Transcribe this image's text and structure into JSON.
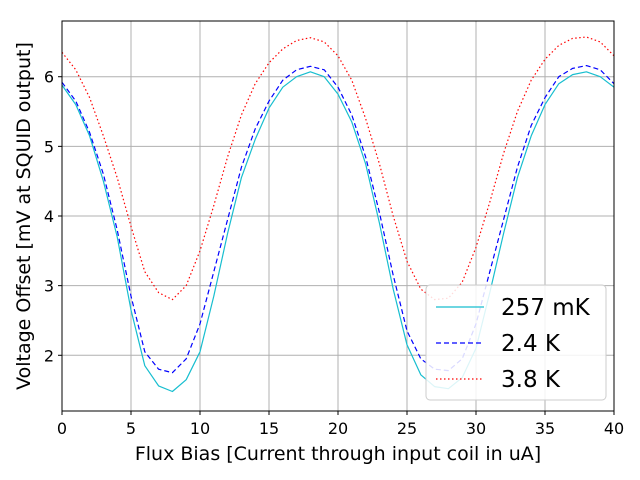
{
  "chart_data": {
    "type": "line",
    "xlabel": "Flux Bias [Current through input coil in uA]",
    "ylabel": "Voltage Offset [mV at SQUID output]",
    "xlim": [
      0,
      40
    ],
    "ylim": [
      1.2,
      6.8
    ],
    "x_ticks": [
      0,
      5,
      10,
      15,
      20,
      25,
      30,
      35,
      40
    ],
    "y_ticks": [
      2,
      3,
      4,
      5,
      6
    ],
    "grid": true,
    "legend_position": "lower-right",
    "x": [
      0,
      1,
      2,
      3,
      4,
      5,
      6,
      7,
      8,
      9,
      10,
      11,
      12,
      13,
      14,
      15,
      16,
      17,
      18,
      19,
      20,
      21,
      22,
      23,
      24,
      25,
      26,
      27,
      28,
      29,
      30,
      31,
      32,
      33,
      34,
      35,
      36,
      37,
      38,
      39,
      40
    ],
    "series": [
      {
        "name": "257 mK",
        "color": "#17becf",
        "style": "solid",
        "values": [
          5.88,
          5.6,
          5.15,
          4.5,
          3.7,
          2.65,
          1.85,
          1.56,
          1.48,
          1.65,
          2.05,
          2.85,
          3.75,
          4.55,
          5.1,
          5.55,
          5.85,
          6.0,
          6.07,
          6.0,
          5.75,
          5.35,
          4.75,
          3.9,
          2.95,
          2.15,
          1.72,
          1.55,
          1.52,
          1.68,
          2.1,
          2.9,
          3.75,
          4.55,
          5.15,
          5.6,
          5.9,
          6.03,
          6.07,
          6.0,
          5.85
        ]
      },
      {
        "name": "2.4 K",
        "color": "#0000ff",
        "style": "dashed",
        "values": [
          5.92,
          5.65,
          5.2,
          4.6,
          3.8,
          2.85,
          2.05,
          1.8,
          1.75,
          1.95,
          2.45,
          3.2,
          3.95,
          4.7,
          5.25,
          5.65,
          5.95,
          6.1,
          6.15,
          6.1,
          5.85,
          5.45,
          4.85,
          4.05,
          3.15,
          2.35,
          1.95,
          1.8,
          1.78,
          1.95,
          2.45,
          3.2,
          3.95,
          4.7,
          5.3,
          5.7,
          6.0,
          6.12,
          6.16,
          6.1,
          5.9
        ]
      },
      {
        "name": "3.8 K",
        "color": "#ff0000",
        "style": "dotted",
        "values": [
          6.35,
          6.1,
          5.7,
          5.15,
          4.55,
          3.85,
          3.2,
          2.9,
          2.8,
          3.0,
          3.5,
          4.15,
          4.85,
          5.45,
          5.9,
          6.2,
          6.4,
          6.52,
          6.56,
          6.5,
          6.3,
          5.95,
          5.4,
          4.75,
          4.0,
          3.35,
          2.95,
          2.8,
          2.82,
          3.05,
          3.55,
          4.2,
          4.9,
          5.5,
          5.95,
          6.25,
          6.45,
          6.55,
          6.57,
          6.5,
          6.3
        ]
      }
    ]
  }
}
